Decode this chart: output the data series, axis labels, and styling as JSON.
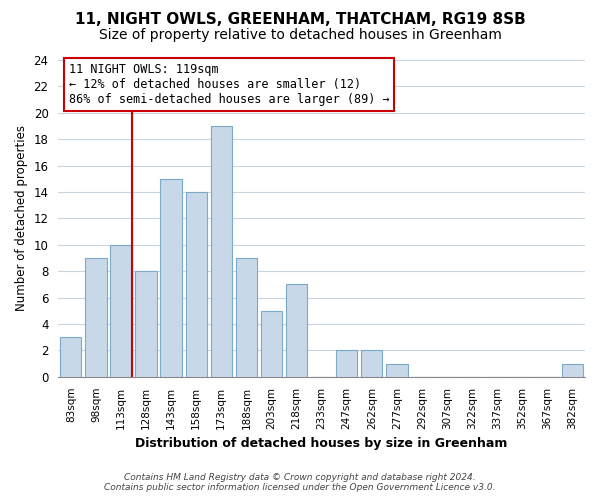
{
  "title": "11, NIGHT OWLS, GREENHAM, THATCHAM, RG19 8SB",
  "subtitle": "Size of property relative to detached houses in Greenham",
  "xlabel": "Distribution of detached houses by size in Greenham",
  "ylabel": "Number of detached properties",
  "categories": [
    "83sqm",
    "98sqm",
    "113sqm",
    "128sqm",
    "143sqm",
    "158sqm",
    "173sqm",
    "188sqm",
    "203sqm",
    "218sqm",
    "233sqm",
    "247sqm",
    "262sqm",
    "277sqm",
    "292sqm",
    "307sqm",
    "322sqm",
    "337sqm",
    "352sqm",
    "367sqm",
    "382sqm"
  ],
  "values": [
    3,
    9,
    10,
    8,
    15,
    14,
    19,
    9,
    5,
    7,
    0,
    2,
    2,
    1,
    0,
    0,
    0,
    0,
    0,
    0,
    1
  ],
  "bar_color": "#c8d8e8",
  "bar_edge_color": "#7aaac8",
  "highlight_index": 2,
  "highlight_line_color": "#cc0000",
  "ylim": [
    0,
    24
  ],
  "yticks": [
    0,
    2,
    4,
    6,
    8,
    10,
    12,
    14,
    16,
    18,
    20,
    22,
    24
  ],
  "annotation_title": "11 NIGHT OWLS: 119sqm",
  "annotation_line1": "← 12% of detached houses are smaller (12)",
  "annotation_line2": "86% of semi-detached houses are larger (89) →",
  "annotation_box_color": "#ffffff",
  "annotation_box_edge_color": "#cc0000",
  "footer1": "Contains HM Land Registry data © Crown copyright and database right 2024.",
  "footer2": "Contains public sector information licensed under the Open Government Licence v3.0.",
  "background_color": "#ffffff",
  "grid_color": "#c8d4e0",
  "title_fontsize": 11,
  "subtitle_fontsize": 10
}
